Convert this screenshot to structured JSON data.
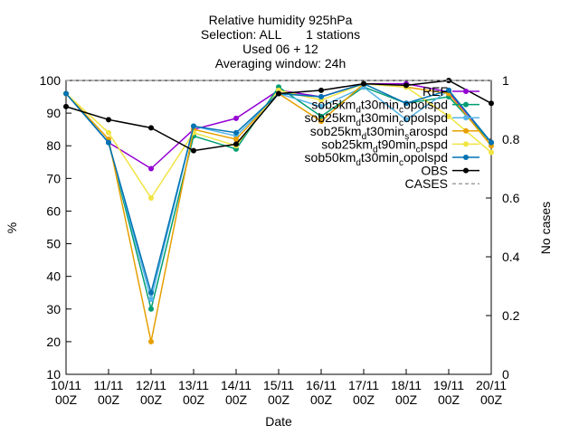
{
  "chart_data": {
    "type": "line",
    "title": [
      "Relative humidity 925hPa",
      "Selection: ALL       1 stations",
      "Used 06 + 12",
      "Averaging window: 24h"
    ],
    "xlabel": "Date",
    "ylabel": "%",
    "y2label": "No cases",
    "categories": [
      [
        "10/11",
        "00Z"
      ],
      [
        "11/11",
        "00Z"
      ],
      [
        "12/11",
        "00Z"
      ],
      [
        "13/11",
        "00Z"
      ],
      [
        "14/11",
        "00Z"
      ],
      [
        "15/11",
        "00Z"
      ],
      [
        "16/11",
        "00Z"
      ],
      [
        "17/11",
        "00Z"
      ],
      [
        "18/11",
        "00Z"
      ],
      [
        "19/11",
        "00Z"
      ],
      [
        "20/11",
        "00Z"
      ]
    ],
    "ylim": [
      10,
      100
    ],
    "yticks": [
      10,
      20,
      30,
      40,
      50,
      60,
      70,
      80,
      90,
      100
    ],
    "y2lim": [
      0,
      1
    ],
    "y2ticks": [
      0,
      0.2,
      0.4,
      0.6,
      0.8,
      1
    ],
    "legend": "top-right",
    "series": [
      {
        "name": [
          "REF"
        ],
        "color": "#9400d3",
        "values": [
          96,
          81,
          73,
          85,
          88.4,
          97,
          95,
          99,
          99,
          96.5,
          81
        ]
      },
      {
        "name": [
          "sob5km",
          "d",
          "t30min",
          "c",
          "opolspd"
        ],
        "color": "#009e73",
        "values": [
          96,
          81,
          30,
          83,
          79,
          98,
          89,
          98,
          93,
          95,
          81
        ]
      },
      {
        "name": [
          "sob25km",
          "d",
          "t30min",
          "c",
          "opolspd"
        ],
        "color": "#56b4e9",
        "values": [
          96,
          81,
          33,
          86,
          83,
          96,
          92,
          98,
          88,
          97,
          81
        ]
      },
      {
        "name": [
          "sob25km",
          "d",
          "t30min",
          "s",
          "arospd"
        ],
        "color": "#e69f00",
        "values": [
          96,
          82,
          20,
          85,
          82,
          96,
          87.5,
          99,
          98,
          96,
          80
        ]
      },
      {
        "name": [
          "sob25km",
          "d",
          "t90min",
          "c",
          "pspd"
        ],
        "color": "#f0e442",
        "values": [
          96,
          84,
          64,
          84,
          80,
          97,
          94,
          99,
          98,
          89,
          78
        ]
      },
      {
        "name": [
          "sob50km",
          "d",
          "t30min",
          "c",
          "opolspd"
        ],
        "color": "#0072b2",
        "values": [
          96,
          81,
          35,
          86,
          84,
          96,
          95,
          99,
          93,
          97,
          81
        ]
      },
      {
        "name": [
          "OBS"
        ],
        "color": "#000000",
        "values": [
          92,
          88,
          85.5,
          78.5,
          80.5,
          96,
          97,
          99,
          98.5,
          100,
          93
        ]
      },
      {
        "name": [
          "CASES"
        ],
        "color": "#a0a0a0",
        "dashed": true,
        "axis": "y2",
        "values": [
          1,
          1,
          1,
          1,
          1,
          1,
          1,
          1,
          1,
          1,
          1
        ]
      }
    ]
  }
}
